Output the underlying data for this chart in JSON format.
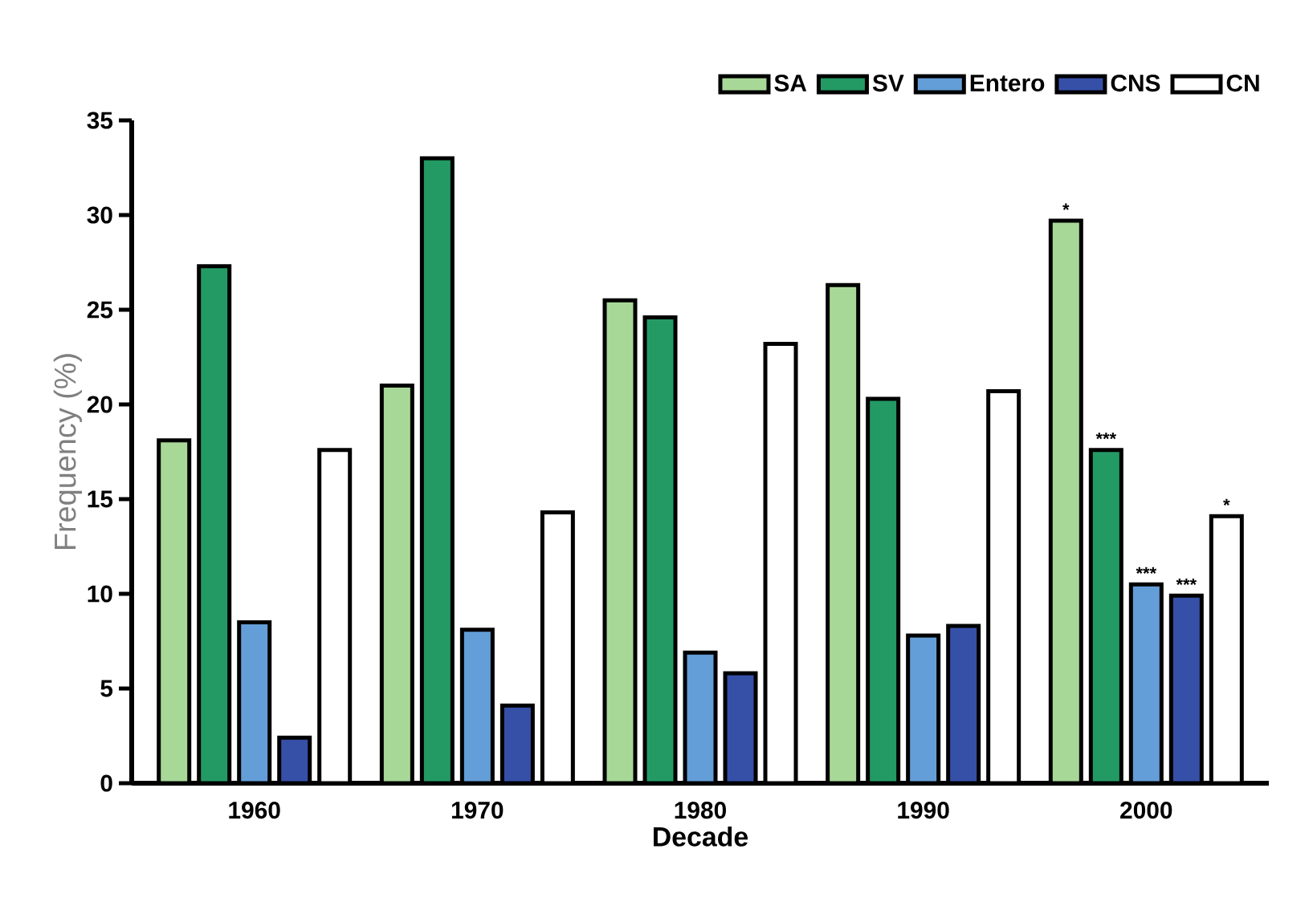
{
  "chart_data": {
    "type": "bar",
    "xlabel": "Decade",
    "ylabel": "Frequency (%)",
    "categories": [
      "1960",
      "1970",
      "1980",
      "1990",
      "2000"
    ],
    "series": [
      {
        "name": "SA",
        "color": "#a8d898",
        "values": [
          18.1,
          21.0,
          25.5,
          26.3,
          29.7
        ]
      },
      {
        "name": "SV",
        "color": "#239a64",
        "values": [
          27.3,
          33.0,
          24.6,
          20.3,
          17.6
        ]
      },
      {
        "name": "Entero",
        "color": "#649ed8",
        "values": [
          8.5,
          8.1,
          6.9,
          7.8,
          10.5
        ]
      },
      {
        "name": "CNS",
        "color": "#3650a8",
        "values": [
          2.4,
          4.1,
          5.8,
          8.3,
          9.9
        ]
      },
      {
        "name": "CN",
        "color": "#ffffff",
        "values": [
          17.6,
          14.3,
          23.2,
          20.7,
          14.1
        ]
      }
    ],
    "ylim": [
      0,
      35
    ],
    "yticks": [
      0,
      5,
      10,
      15,
      20,
      25,
      30,
      35
    ],
    "grid": false,
    "legend": "top right",
    "annotations": [
      "*",
      "***",
      "***",
      "***",
      "*"
    ]
  }
}
